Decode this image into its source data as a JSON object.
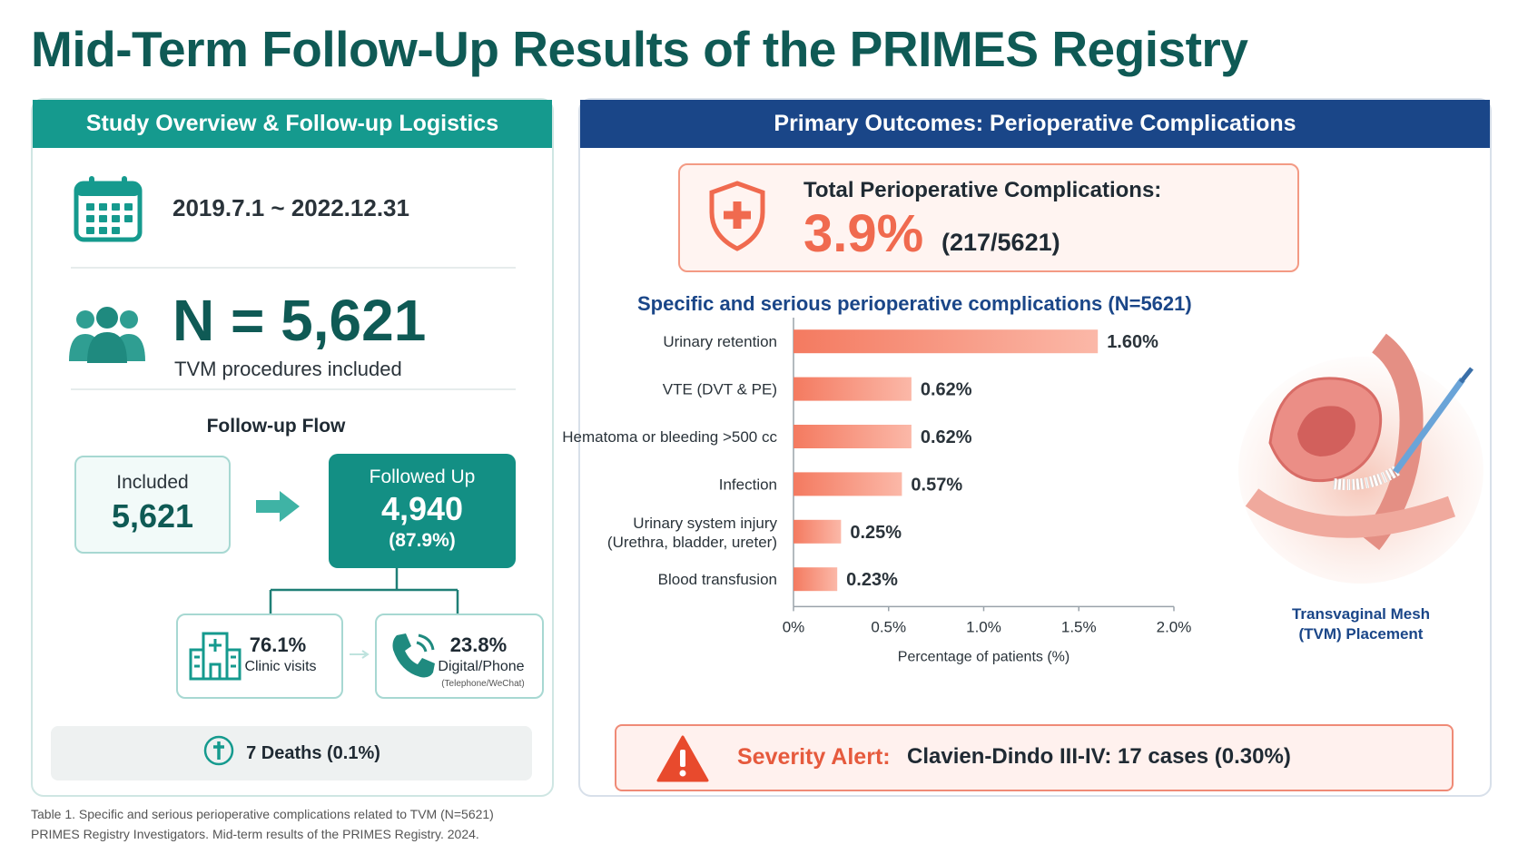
{
  "title": "Mid-Term Follow-Up Results of the PRIMES Registry",
  "left": {
    "header": "Study Overview & Follow-up Logistics",
    "date_range": "2019.7.1 ~ 2022.12.31",
    "n_text": "N = 5,621",
    "n_sub": "TVM procedures included",
    "flow_title": "Follow-up Flow",
    "included_label": "Included",
    "included_value": "5,621",
    "followed_label": "Followed Up",
    "followed_value": "4,940",
    "followed_pct": "(87.9%)",
    "clinic_pct": "76.1%",
    "clinic_label": "Clinic visits",
    "digital_pct": "23.8%",
    "digital_label": "Digital/Phone",
    "digital_small": "(Telephone/WeChat)",
    "deaths": "7 Deaths (0.1%)"
  },
  "right": {
    "header": "Primary Outcomes: Perioperative Complications",
    "total_label": "Total Perioperative Complications:",
    "total_value": "3.9%",
    "total_fraction": "(217/5621)",
    "chart_title": "Specific and serious perioperative complications (N=5621)",
    "illustration_caption_1": "Transvaginal Mesh",
    "illustration_caption_2": "(TVM) Placement",
    "alert_label": "Severity Alert:",
    "alert_value": "Clavien-Dindo III-IV: 17 cases (0.30%)"
  },
  "chart_data": {
    "type": "bar",
    "orientation": "horizontal",
    "categories": [
      [
        "Urinary retention"
      ],
      [
        "VTE (DVT & PE)"
      ],
      [
        "Hematoma or bleeding >500 cc"
      ],
      [
        "Infection"
      ],
      [
        "Urinary system injury",
        "(Urethra, bladder, ureter)"
      ],
      [
        "Blood transfusion"
      ]
    ],
    "values": [
      1.6,
      0.62,
      0.62,
      0.57,
      0.25,
      0.23
    ],
    "value_labels": [
      "1.60%",
      "0.62%",
      "0.62%",
      "0.57%",
      "0.25%",
      "0.23%"
    ],
    "xlabel": "Percentage of patients (%)",
    "xlim": [
      0,
      2.0
    ],
    "xticks": [
      "0%",
      "0.5%",
      "1.0%",
      "1.5%",
      "2.0%"
    ],
    "bar_color": "#f47a60",
    "grid": false
  },
  "footnote": {
    "line1": "Table 1. Specific and serious perioperative complications related to TVM (N=5621)",
    "line2": "PRIMES Registry Investigators. Mid-term results of the PRIMES Registry. 2024."
  },
  "colors": {
    "teal": "#159a8e",
    "navy": "#1a4688",
    "coral": "#f06a4f"
  }
}
